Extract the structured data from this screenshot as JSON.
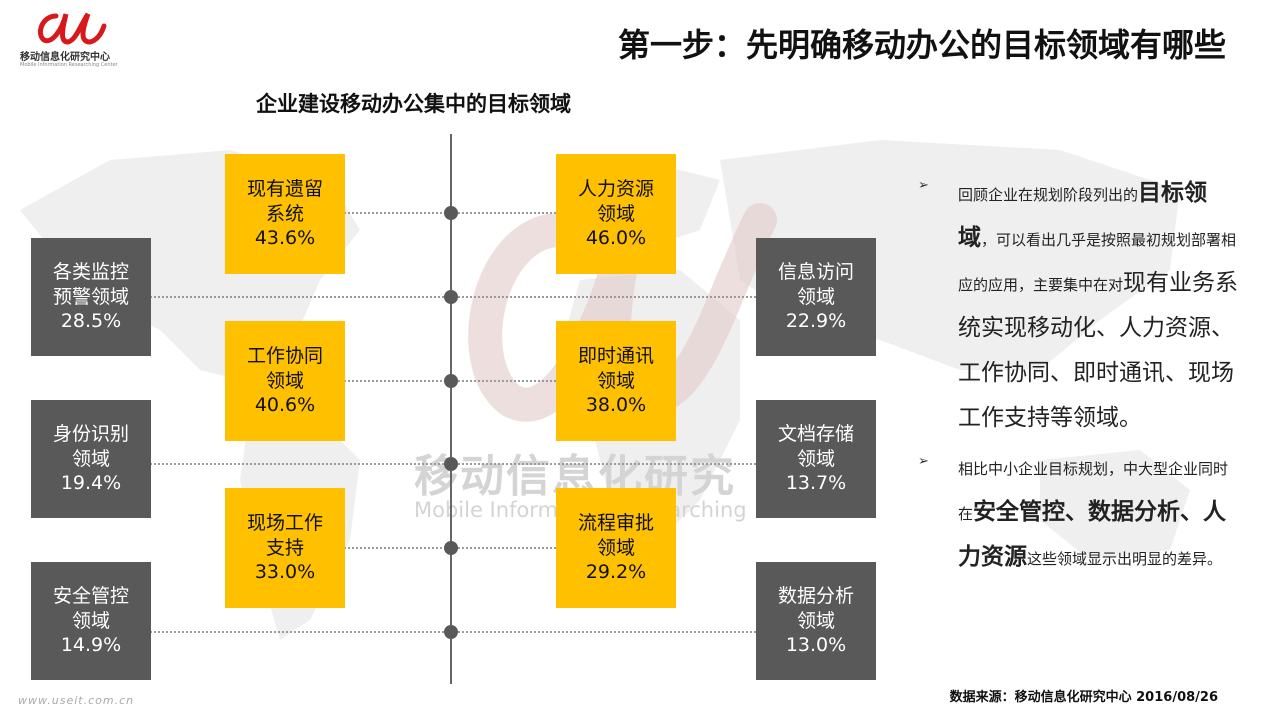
{
  "logo": {
    "name_cn": "移动信息化研究中心",
    "name_en": "Mobile Information Researching Center"
  },
  "title": "第一步：先明确移动办公的目标领域有哪些",
  "subtitle": "企业建设移动办公集中的目标领域",
  "colors": {
    "inner_box": "#FFC000",
    "outer_box": "#595959",
    "axis": "#666666",
    "logo_red": "#D7191C"
  },
  "center_boxes": [
    {
      "line1": "现有遗留",
      "line2": "系统",
      "value": "43.6%"
    },
    {
      "line1": "人力资源",
      "line2": "领域",
      "value": "46.0%"
    },
    {
      "line1": "工作协同",
      "line2": "领域",
      "value": "40.6%"
    },
    {
      "line1": "即时通讯",
      "line2": "领域",
      "value": "38.0%"
    },
    {
      "line1": "现场工作",
      "line2": "支持",
      "value": "33.0%"
    },
    {
      "line1": "流程审批",
      "line2": "领域",
      "value": "29.2%"
    }
  ],
  "outer_boxes": [
    {
      "line1": "各类监控",
      "line2": "预警领域",
      "value": "28.5%"
    },
    {
      "line1": "信息访问",
      "line2": "领域",
      "value": "22.9%"
    },
    {
      "line1": "身份识别",
      "line2": "领域",
      "value": "19.4%"
    },
    {
      "line1": "文档存储",
      "line2": "领域",
      "value": "13.7%"
    },
    {
      "line1": "安全管控",
      "line2": "领域",
      "value": "14.9%"
    },
    {
      "line1": "数据分析",
      "line2": "领域",
      "value": "13.0%"
    }
  ],
  "watermark": {
    "cn": "移动信息化研究",
    "en": "Mobile  Information  Researching"
  },
  "bullets": [
    {
      "parts": [
        {
          "text": "回顾企业在规划阶段列出的",
          "style": "normal"
        },
        {
          "text": "目标领域",
          "style": "bold"
        },
        {
          "text": "，可以看出几乎是按照最初规划部署相应的应用，主要集中在对",
          "style": "normal"
        },
        {
          "text": "现有业务系统实现移动化、人力资源、工作协同、即时通讯、现场工作支持等领域。",
          "style": "big"
        }
      ]
    },
    {
      "parts": [
        {
          "text": "相比中小企业目标规划，中大型企业同时在",
          "style": "normal"
        },
        {
          "text": "安全管控、数据分析、人力资源",
          "style": "bold"
        },
        {
          "text": "这些领域显示出明显的差异。",
          "style": "normal"
        }
      ]
    }
  ],
  "source": "数据来源：移动信息化研究中心 2016/08/26",
  "footer_url": "www.useit.com.cn"
}
